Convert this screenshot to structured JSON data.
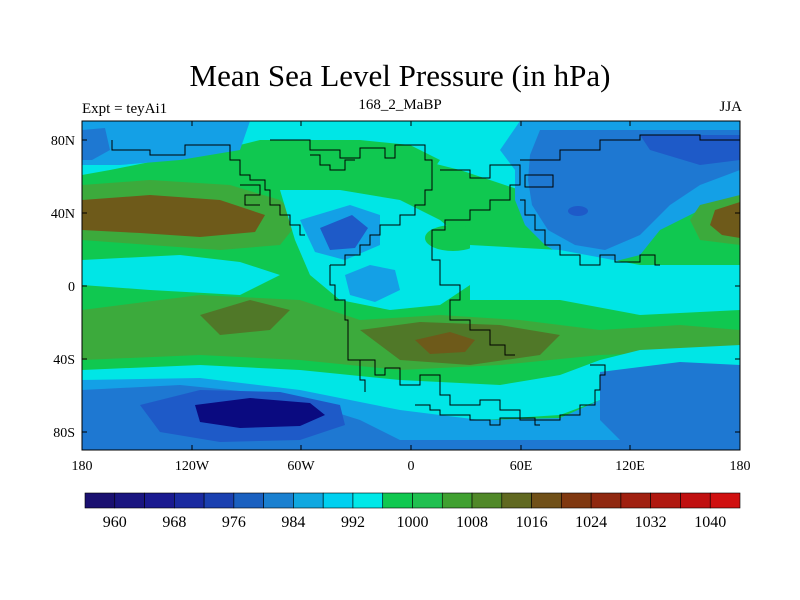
{
  "title": "Mean Sea Level Pressure (in hPa)",
  "left_label": "Expt = teyAi1",
  "center_label": "168_2_MaBP",
  "right_label": "JJA",
  "lat_ticks": [
    "80N",
    "40N",
    "0",
    "40S",
    "80S"
  ],
  "lon_ticks": [
    "180",
    "120W",
    "60W",
    "0",
    "60E",
    "120E",
    "180"
  ],
  "colorbar": {
    "labels": [
      "960",
      "968",
      "976",
      "984",
      "992",
      "1000",
      "1008",
      "1016",
      "1024",
      "1032",
      "1040"
    ],
    "colors": [
      "#1a1070",
      "#1a1580",
      "#1a1a90",
      "#1a2aa0",
      "#1a40b0",
      "#1a60c0",
      "#1a80d0",
      "#10a8e0",
      "#00d0f0",
      "#00e8e8",
      "#10c850",
      "#20c050",
      "#40a030",
      "#508828",
      "#606820",
      "#705018",
      "#803810",
      "#902810",
      "#a02010",
      "#b01810",
      "#c01010",
      "#d01010"
    ]
  },
  "palette": {
    "deep_blue": "#0a0a80",
    "blue": "#1e5ac8",
    "mid_blue": "#1e78d2",
    "light_blue": "#14a0e6",
    "cyan": "#00e6e6",
    "green": "#10c850",
    "mid_green": "#3caa3c",
    "olive": "#507828",
    "brown": "#6e5a1a"
  }
}
